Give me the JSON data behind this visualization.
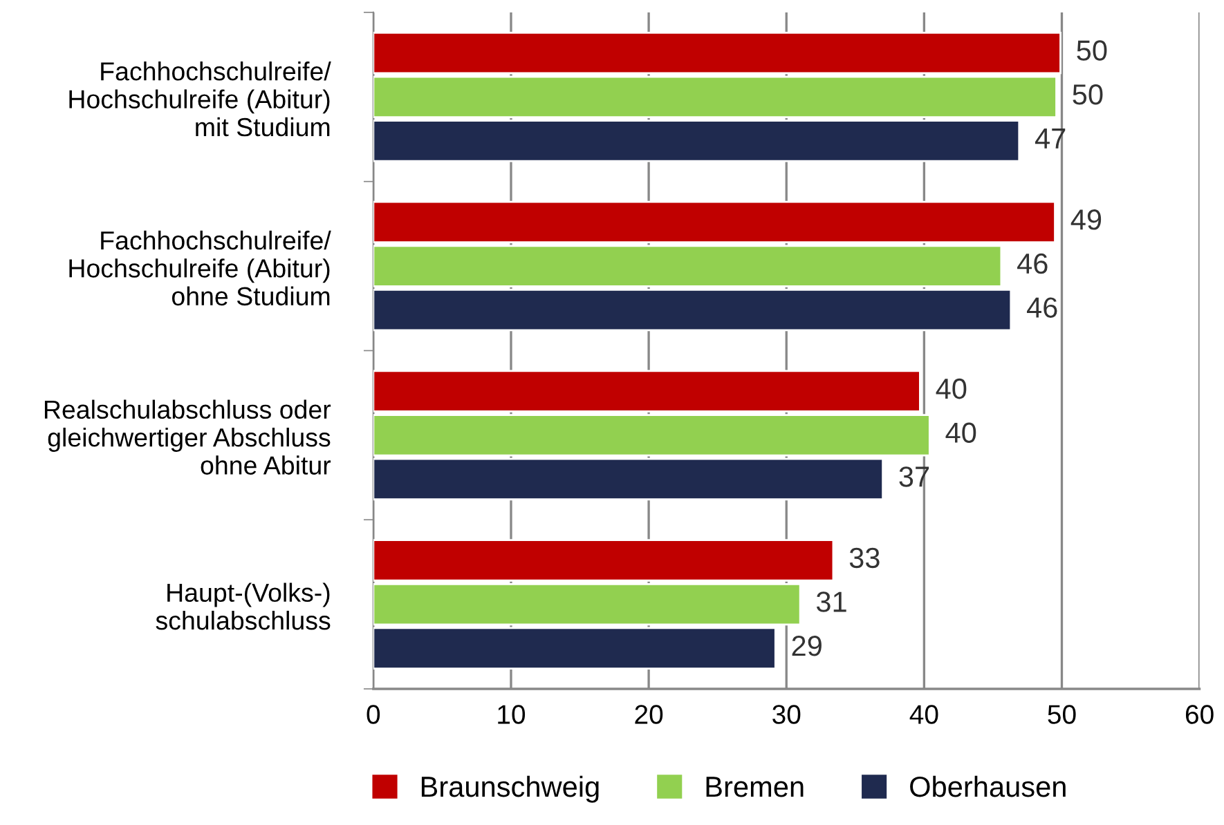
{
  "chart_data": {
    "type": "bar",
    "orientation": "horizontal",
    "categories": [
      "Fachhochschulreife/\nHochschulreife (Abitur)\nmit Studium",
      "Fachhochschulreife/\nHochschulreife (Abitur)\nohne Studium",
      "Realschulabschluss oder\ngleichwertiger Abschluss\nohne Abitur",
      "Haupt-(Volks-)\nschulabschluss"
    ],
    "series": [
      {
        "name": "Braunschweig",
        "color": "#c00000",
        "values": [
          49.9,
          49.5,
          39.7,
          33.4
        ],
        "value_labels": [
          "50",
          "49",
          "40",
          "33"
        ]
      },
      {
        "name": "Bremen",
        "color": "#92d050",
        "values": [
          49.6,
          45.6,
          40.4,
          31.0
        ],
        "value_labels": [
          "50",
          "46",
          "40",
          "31"
        ]
      },
      {
        "name": "Oberhausen",
        "color": "#1f2a4f",
        "values": [
          46.9,
          46.3,
          37.0,
          29.2
        ],
        "value_labels": [
          "47",
          "46",
          "37",
          "29"
        ]
      }
    ],
    "xlim": [
      0,
      60
    ],
    "xticks": [
      0,
      10,
      20,
      30,
      40,
      50,
      60
    ],
    "grid": "x",
    "legend": "bottom"
  }
}
